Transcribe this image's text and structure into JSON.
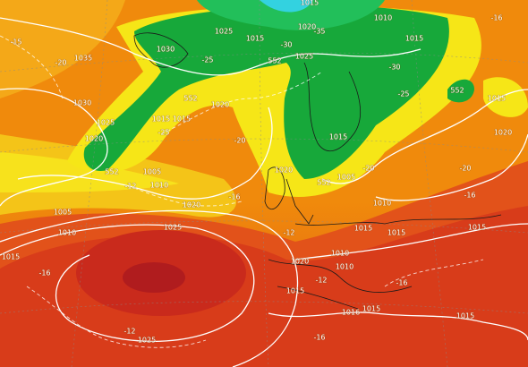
{
  "map": {
    "labels": [
      "1035",
      "1030",
      "1025",
      "1015",
      "1020",
      "1015",
      "1010",
      "1015",
      "552",
      "1025",
      "-15",
      "-20",
      "1030",
      "1025",
      "1020",
      "1015",
      "1015",
      "552",
      "1020",
      "1005",
      "1010",
      "-12",
      "-25",
      "-20",
      "1020",
      "-16",
      "1005",
      "1010",
      "1025",
      "-12",
      "1015",
      "-16",
      "1020",
      "1010",
      "1015",
      "1010",
      "-12",
      "1015",
      "1010",
      "1005",
      "552",
      "1015",
      "1020",
      "-20",
      "-25",
      "-30",
      "1015",
      "552",
      "1020",
      "-20",
      "-16",
      "1015",
      "1015",
      "1015",
      "-16",
      "1016",
      "1015",
      "-12",
      "1025",
      "-16",
      "-25",
      "-30",
      "-35",
      "-16",
      "552"
    ]
  }
}
